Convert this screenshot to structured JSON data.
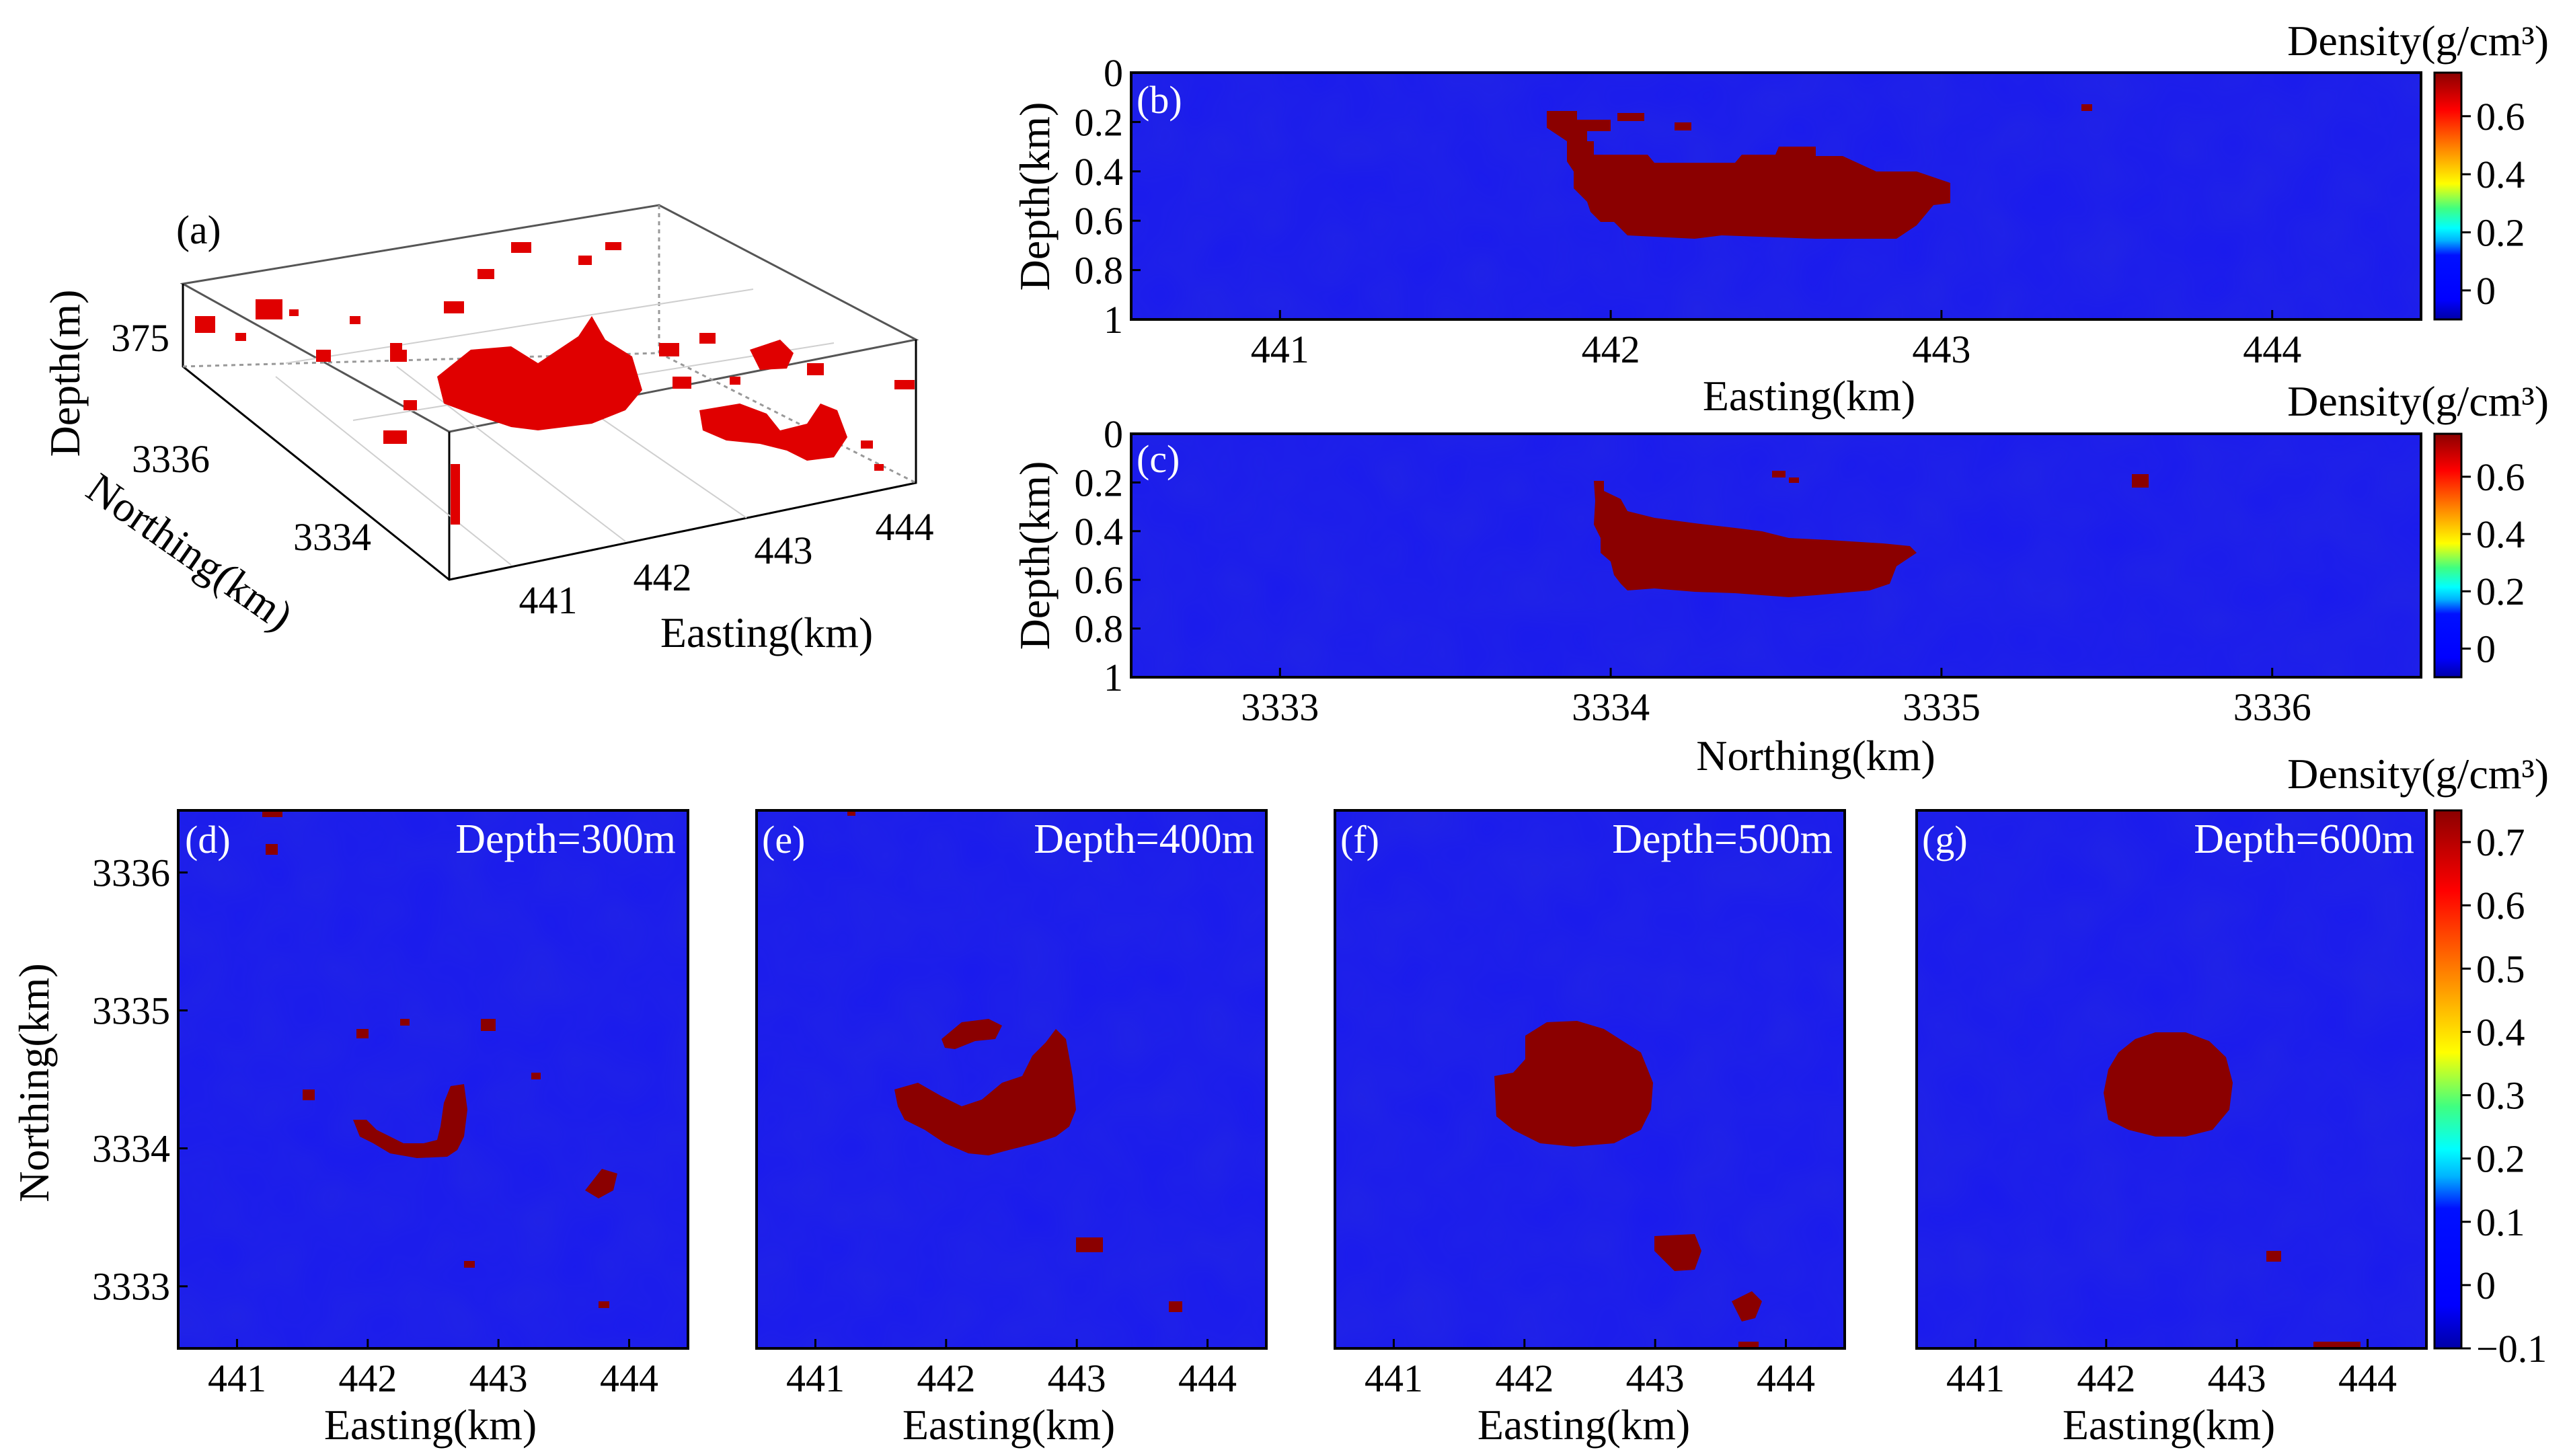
{
  "colors": {
    "background_blue": "#1a1aee",
    "anomaly_red": "#8b0000",
    "block_red": "#ff0000",
    "colormap": [
      "#0000a8",
      "#0000ff",
      "#00b4ff",
      "#00ffff",
      "#40ff80",
      "#ffff00",
      "#ff8000",
      "#ff0000",
      "#8b0000"
    ]
  },
  "chart_data": [
    {
      "panel": "(a)",
      "type": "scatter",
      "description_kind": "3d-voxel-scatter",
      "xlabel": "Easting(km)",
      "ylabel": "Northing(km)",
      "zlabel": "Depth(m)",
      "x_ticks": [
        "441",
        "442",
        "443",
        "444"
      ],
      "y_ticks": [
        "3334",
        "3336"
      ],
      "z_ticks": [
        "375"
      ],
      "main_body_center": {
        "easting_km": 442.3,
        "northing_km": 3334.5
      }
    },
    {
      "panel": "(b)",
      "type": "heatmap",
      "xlabel": "Easting(km)",
      "ylabel": "Depth(km)",
      "xlim": [
        440.55,
        444.45
      ],
      "ylim": [
        1,
        0
      ],
      "x_ticks": [
        "441",
        "442",
        "443",
        "444"
      ],
      "y_ticks": [
        "0",
        "0.2",
        "0.4",
        "0.6",
        "0.8",
        "1"
      ],
      "colorbar_title": "Density(g/cm³)",
      "colorbar_ticks": [
        "0",
        "0.2",
        "0.4",
        "0.6"
      ],
      "clim": [
        -0.1,
        0.75
      ],
      "anomaly": {
        "value": 0.75,
        "x_range_km": [
          441.7,
          443.0
        ],
        "depth_range_km": [
          0.15,
          0.65
        ]
      }
    },
    {
      "panel": "(c)",
      "type": "heatmap",
      "xlabel": "Northing(km)",
      "ylabel": "Depth(km)",
      "xlim": [
        3332.55,
        3336.45
      ],
      "ylim": [
        1,
        0
      ],
      "x_ticks": [
        "3333",
        "3334",
        "3335",
        "3336"
      ],
      "y_ticks": [
        "0",
        "0.2",
        "0.4",
        "0.6",
        "0.8",
        "1"
      ],
      "colorbar_title": "Density(g/cm³)",
      "colorbar_ticks": [
        "0",
        "0.2",
        "0.4",
        "0.6"
      ],
      "clim": [
        -0.1,
        0.75
      ],
      "anomaly": {
        "value": 0.75,
        "x_range_km": [
          3333.9,
          3334.9
        ],
        "depth_range_km": [
          0.2,
          0.67
        ]
      }
    },
    {
      "panel": "(d)",
      "type": "heatmap",
      "title": "Depth=300m",
      "xlabel": "Easting(km)",
      "ylabel": "Northing(km)",
      "xlim": [
        440.55,
        444.45
      ],
      "ylim": [
        3332.55,
        3336.45
      ],
      "x_ticks": [
        "441",
        "442",
        "443",
        "444"
      ],
      "y_ticks": [
        "3333",
        "3334",
        "3335",
        "3336"
      ],
      "anomaly": {
        "value": 0.75,
        "shape": "arc",
        "center_km": [
          442.5,
          3334.3
        ]
      }
    },
    {
      "panel": "(e)",
      "type": "heatmap",
      "title": "Depth=400m",
      "xlabel": "Easting(km)",
      "ylabel": "Northing(km)",
      "xlim": [
        440.55,
        444.45
      ],
      "ylim": [
        3332.55,
        3336.45
      ],
      "x_ticks": [
        "441",
        "442",
        "443",
        "444"
      ],
      "anomaly": {
        "value": 0.75,
        "shape": "crescent",
        "center_km": [
          442.4,
          3334.4
        ]
      }
    },
    {
      "panel": "(f)",
      "type": "heatmap",
      "title": "Depth=500m",
      "xlabel": "Easting(km)",
      "ylabel": "Northing(km)",
      "xlim": [
        440.55,
        444.45
      ],
      "ylim": [
        3332.55,
        3336.45
      ],
      "x_ticks": [
        "441",
        "442",
        "443",
        "444"
      ],
      "anomaly": {
        "value": 0.75,
        "shape": "disk",
        "center_km": [
          442.4,
          3334.4
        ]
      }
    },
    {
      "panel": "(g)",
      "type": "heatmap",
      "title": "Depth=600m",
      "xlabel": "Easting(km)",
      "ylabel": "Northing(km)",
      "xlim": [
        440.55,
        444.45
      ],
      "ylim": [
        3332.55,
        3336.45
      ],
      "x_ticks": [
        "441",
        "442",
        "443",
        "444"
      ],
      "anomaly": {
        "value": 0.75,
        "shape": "disk",
        "center_km": [
          442.5,
          3334.3
        ]
      },
      "colorbar_title": "Density(g/cm³)",
      "colorbar_ticks": [
        "−0.1",
        "0",
        "0.1",
        "0.2",
        "0.3",
        "0.4",
        "0.5",
        "0.6",
        "0.7"
      ]
    }
  ]
}
